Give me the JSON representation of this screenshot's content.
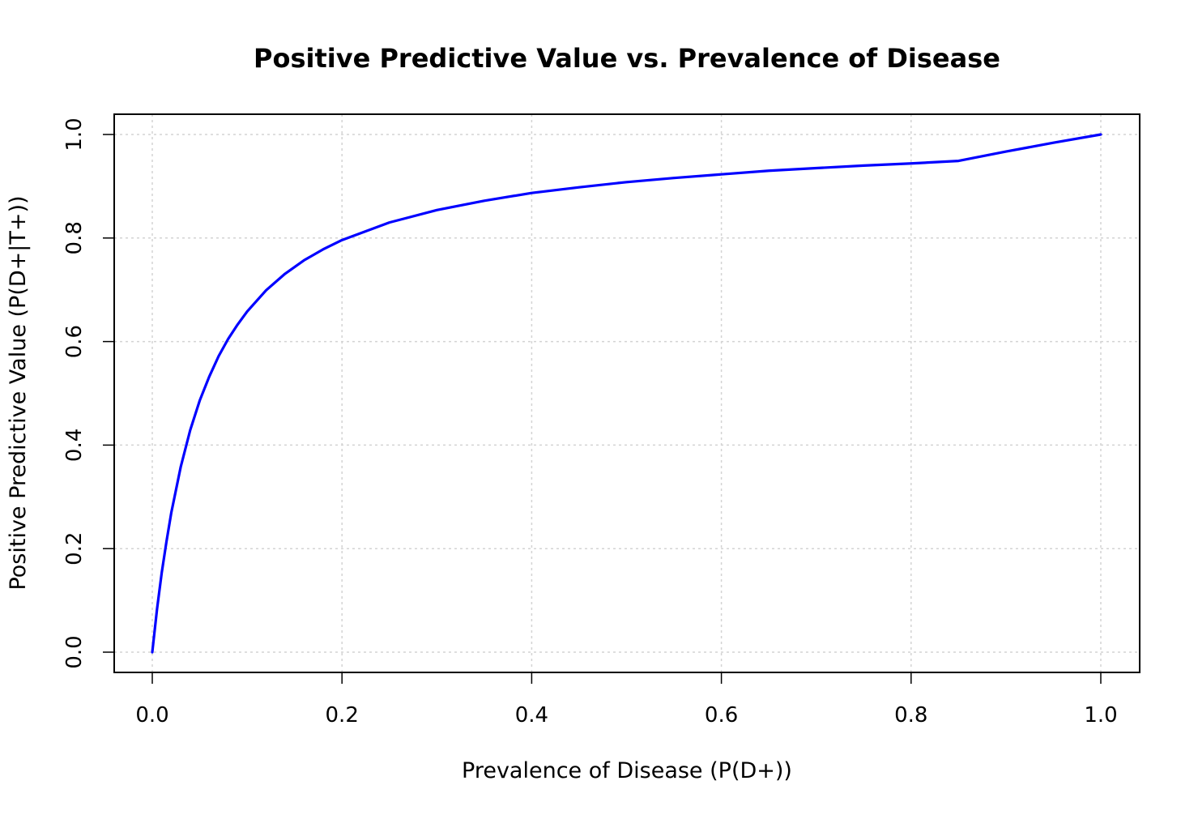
{
  "chart_data": {
    "type": "line",
    "title": "Positive Predictive Value vs. Prevalence of Disease",
    "xlabel": "Prevalence of Disease (P(D+))",
    "ylabel": "Positive Predictive Value (P(D+|T+))",
    "xlim": [
      0,
      1
    ],
    "ylim": [
      0,
      1
    ],
    "grid": true,
    "legend": "none",
    "x_ticks": [
      "0.0",
      "0.2",
      "0.4",
      "0.6",
      "0.8",
      "1.0"
    ],
    "y_ticks": [
      "0.0",
      "0.2",
      "0.4",
      "0.6",
      "0.8",
      "1.0"
    ],
    "series": [
      {
        "color": "#0000ff",
        "x": [
          0.0,
          0.005,
          0.01,
          0.015,
          0.02,
          0.03,
          0.04,
          0.05,
          0.06,
          0.07,
          0.08,
          0.09,
          0.1,
          0.12,
          0.14,
          0.16,
          0.18,
          0.2,
          0.25,
          0.3,
          0.35,
          0.4,
          0.45,
          0.5,
          0.55,
          0.6,
          0.65,
          0.7,
          0.75,
          0.8,
          0.85,
          0.9,
          0.95,
          1.0
        ],
        "y": [
          0.0,
          0.083,
          0.154,
          0.214,
          0.269,
          0.358,
          0.429,
          0.486,
          0.532,
          0.572,
          0.605,
          0.633,
          0.658,
          0.699,
          0.731,
          0.757,
          0.778,
          0.796,
          0.83,
          0.854,
          0.872,
          0.887,
          0.898,
          0.908,
          0.916,
          0.923,
          0.93,
          0.935,
          0.94,
          0.944,
          0.949,
          0.967,
          0.984,
          1.0
        ]
      }
    ]
  }
}
